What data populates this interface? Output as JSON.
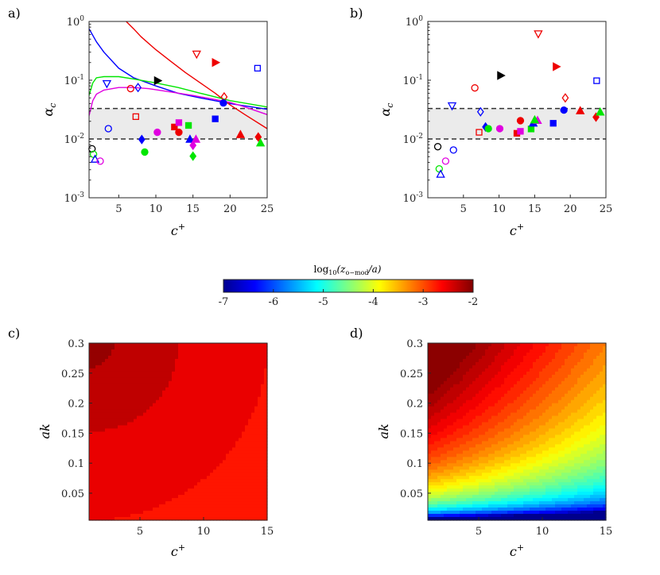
{
  "figure": {
    "panels": [
      {
        "label": "a)",
        "id": "a"
      },
      {
        "label": "b)",
        "id": "b"
      },
      {
        "label": "c)",
        "id": "c"
      },
      {
        "label": "d)",
        "id": "d"
      }
    ]
  },
  "colors": {
    "black": "#000000",
    "blue": "#0000ff",
    "green": "#00e600",
    "magenta": "#e000e0",
    "red": "#ee0000",
    "band": "#ebebeb"
  },
  "chart_data": [
    {
      "id": "a",
      "type": "scatter",
      "title": "",
      "xlabel": "c+",
      "ylabel": "αc",
      "xscale": "linear",
      "yscale": "log",
      "xlim": [
        1,
        25
      ],
      "ylim": [
        0.001,
        1
      ],
      "xticks": [
        "5",
        "10",
        "15",
        "20",
        "25"
      ],
      "yticks": [
        "10-3",
        "10-2",
        "10-1",
        "100"
      ],
      "reference_lines": [
        0.01,
        0.033
      ],
      "band": [
        0.01,
        0.033
      ],
      "curves": [
        {
          "color": "blue",
          "x": [
            1,
            2,
            3,
            5,
            7,
            10,
            13,
            16,
            20,
            25
          ],
          "y": [
            0.75,
            0.45,
            0.3,
            0.16,
            0.11,
            0.08,
            0.06,
            0.05,
            0.04,
            0.032
          ]
        },
        {
          "color": "red",
          "x": [
            6,
            7,
            8,
            10,
            12,
            14,
            16,
            18,
            20,
            22,
            25
          ],
          "y": [
            1.0,
            0.75,
            0.55,
            0.33,
            0.21,
            0.135,
            0.09,
            0.06,
            0.038,
            0.026,
            0.015
          ]
        },
        {
          "color": "green",
          "x": [
            1,
            1.5,
            2,
            3,
            5,
            7,
            10,
            13,
            16,
            20,
            25
          ],
          "y": [
            0.055,
            0.09,
            0.11,
            0.115,
            0.115,
            0.105,
            0.09,
            0.075,
            0.06,
            0.045,
            0.035
          ]
        },
        {
          "color": "magenta",
          "x": [
            1,
            1.5,
            2,
            3,
            5,
            7,
            9,
            12,
            15,
            18,
            20,
            22,
            25
          ],
          "y": [
            0.025,
            0.045,
            0.058,
            0.068,
            0.075,
            0.075,
            0.072,
            0.063,
            0.055,
            0.047,
            0.042,
            0.035,
            0.026
          ]
        }
      ],
      "points": [
        {
          "x": 1.4,
          "y": 0.0068,
          "color": "black",
          "marker": "circle",
          "filled": false
        },
        {
          "x": 1.6,
          "y": 0.0055,
          "color": "green",
          "marker": "circle",
          "filled": false
        },
        {
          "x": 1.8,
          "y": 0.0045,
          "color": "blue",
          "marker": "triangle-up",
          "filled": false
        },
        {
          "x": 2.5,
          "y": 0.0042,
          "color": "magenta",
          "marker": "circle",
          "filled": false
        },
        {
          "x": 3.6,
          "y": 0.015,
          "color": "blue",
          "marker": "circle",
          "filled": false
        },
        {
          "x": 3.4,
          "y": 0.088,
          "color": "blue",
          "marker": "triangle-down",
          "filled": false
        },
        {
          "x": 6.6,
          "y": 0.072,
          "color": "red",
          "marker": "circle",
          "filled": false
        },
        {
          "x": 7.6,
          "y": 0.075,
          "color": "blue",
          "marker": "diamond",
          "filled": false
        },
        {
          "x": 7.3,
          "y": 0.024,
          "color": "red",
          "marker": "square",
          "filled": false
        },
        {
          "x": 8.1,
          "y": 0.0098,
          "color": "blue",
          "marker": "diamond",
          "filled": true
        },
        {
          "x": 8.5,
          "y": 0.006,
          "color": "green",
          "marker": "circle",
          "filled": true
        },
        {
          "x": 10.2,
          "y": 0.098,
          "color": "black",
          "marker": "triangle-right",
          "filled": true
        },
        {
          "x": 10.2,
          "y": 0.013,
          "color": "magenta",
          "marker": "circle",
          "filled": true
        },
        {
          "x": 12.5,
          "y": 0.016,
          "color": "red",
          "marker": "square",
          "filled": true
        },
        {
          "x": 13.1,
          "y": 0.019,
          "color": "magenta",
          "marker": "square",
          "filled": true
        },
        {
          "x": 13.1,
          "y": 0.013,
          "color": "red",
          "marker": "circle",
          "filled": true
        },
        {
          "x": 14.4,
          "y": 0.017,
          "color": "green",
          "marker": "square",
          "filled": true
        },
        {
          "x": 14.6,
          "y": 0.0098,
          "color": "blue",
          "marker": "triangle-up",
          "filled": true
        },
        {
          "x": 15.0,
          "y": 0.0078,
          "color": "magenta",
          "marker": "diamond",
          "filled": true
        },
        {
          "x": 15.4,
          "y": 0.0098,
          "color": "magenta",
          "marker": "triangle-up",
          "filled": true
        },
        {
          "x": 15.0,
          "y": 0.0051,
          "color": "green",
          "marker": "diamond",
          "filled": true
        },
        {
          "x": 15.5,
          "y": 0.28,
          "color": "red",
          "marker": "triangle-down",
          "filled": false
        },
        {
          "x": 18.0,
          "y": 0.2,
          "color": "red",
          "marker": "triangle-right",
          "filled": true
        },
        {
          "x": 18.0,
          "y": 0.022,
          "color": "blue",
          "marker": "square",
          "filled": true
        },
        {
          "x": 19.2,
          "y": 0.052,
          "color": "red",
          "marker": "diamond",
          "filled": false
        },
        {
          "x": 19.1,
          "y": 0.041,
          "color": "blue",
          "marker": "circle",
          "filled": true
        },
        {
          "x": 21.4,
          "y": 0.0118,
          "color": "red",
          "marker": "triangle-up",
          "filled": true
        },
        {
          "x": 23.7,
          "y": 0.16,
          "color": "blue",
          "marker": "square",
          "filled": false
        },
        {
          "x": 23.8,
          "y": 0.0108,
          "color": "red",
          "marker": "diamond",
          "filled": true
        },
        {
          "x": 24.1,
          "y": 0.0085,
          "color": "green",
          "marker": "triangle-up",
          "filled": true
        }
      ]
    },
    {
      "id": "b",
      "type": "scatter",
      "title": "",
      "xlabel": "c+",
      "ylabel": "αc",
      "xscale": "linear",
      "yscale": "log",
      "xlim": [
        0,
        25
      ],
      "ylim": [
        0.001,
        1
      ],
      "xticks": [
        "5",
        "10",
        "15",
        "20",
        "25"
      ],
      "yticks": [
        "10-3",
        "10-2",
        "10-1",
        "100"
      ],
      "reference_lines": [
        0.01,
        0.033
      ],
      "band": [
        0.01,
        0.033
      ],
      "points": [
        {
          "x": 1.4,
          "y": 0.0074,
          "color": "black",
          "marker": "circle",
          "filled": false
        },
        {
          "x": 1.6,
          "y": 0.0031,
          "color": "green",
          "marker": "circle",
          "filled": false
        },
        {
          "x": 1.8,
          "y": 0.0025,
          "color": "blue",
          "marker": "triangle-up",
          "filled": false
        },
        {
          "x": 2.5,
          "y": 0.0042,
          "color": "magenta",
          "marker": "circle",
          "filled": false
        },
        {
          "x": 3.6,
          "y": 0.0065,
          "color": "blue",
          "marker": "circle",
          "filled": false
        },
        {
          "x": 3.4,
          "y": 0.037,
          "color": "blue",
          "marker": "triangle-down",
          "filled": false
        },
        {
          "x": 6.6,
          "y": 0.074,
          "color": "red",
          "marker": "circle",
          "filled": false
        },
        {
          "x": 7.4,
          "y": 0.029,
          "color": "blue",
          "marker": "diamond",
          "filled": false
        },
        {
          "x": 7.2,
          "y": 0.013,
          "color": "red",
          "marker": "square",
          "filled": false
        },
        {
          "x": 8.1,
          "y": 0.016,
          "color": "blue",
          "marker": "diamond",
          "filled": true
        },
        {
          "x": 8.5,
          "y": 0.015,
          "color": "green",
          "marker": "circle",
          "filled": true
        },
        {
          "x": 10.2,
          "y": 0.12,
          "color": "black",
          "marker": "triangle-right",
          "filled": true
        },
        {
          "x": 10.1,
          "y": 0.015,
          "color": "magenta",
          "marker": "circle",
          "filled": true
        },
        {
          "x": 12.5,
          "y": 0.0125,
          "color": "red",
          "marker": "square",
          "filled": true
        },
        {
          "x": 13.0,
          "y": 0.0135,
          "color": "magenta",
          "marker": "square",
          "filled": true
        },
        {
          "x": 13.0,
          "y": 0.0205,
          "color": "red",
          "marker": "circle",
          "filled": true
        },
        {
          "x": 14.5,
          "y": 0.0148,
          "color": "green",
          "marker": "square",
          "filled": true
        },
        {
          "x": 14.8,
          "y": 0.0185,
          "color": "blue",
          "marker": "triangle-up",
          "filled": true
        },
        {
          "x": 15.4,
          "y": 0.0205,
          "color": "magenta",
          "marker": "triangle-up",
          "filled": true
        },
        {
          "x": 15.0,
          "y": 0.021,
          "color": "green",
          "marker": "triangle-up",
          "filled": true
        },
        {
          "x": 15.5,
          "y": 0.62,
          "color": "red",
          "marker": "triangle-down",
          "filled": false
        },
        {
          "x": 18.0,
          "y": 0.17,
          "color": "red",
          "marker": "triangle-right",
          "filled": true
        },
        {
          "x": 17.6,
          "y": 0.0185,
          "color": "blue",
          "marker": "square",
          "filled": true
        },
        {
          "x": 19.3,
          "y": 0.05,
          "color": "red",
          "marker": "diamond",
          "filled": false
        },
        {
          "x": 19.1,
          "y": 0.031,
          "color": "blue",
          "marker": "circle",
          "filled": true
        },
        {
          "x": 21.4,
          "y": 0.03,
          "color": "red",
          "marker": "triangle-up",
          "filled": true
        },
        {
          "x": 23.7,
          "y": 0.098,
          "color": "blue",
          "marker": "square",
          "filled": false
        },
        {
          "x": 23.6,
          "y": 0.0235,
          "color": "red",
          "marker": "diamond",
          "filled": true
        },
        {
          "x": 24.2,
          "y": 0.0285,
          "color": "green",
          "marker": "triangle-up",
          "filled": true
        }
      ]
    },
    {
      "id": "colorbar",
      "type": "colorbar",
      "title": "log10(zo−mod/a)",
      "title_parts": {
        "prefix": "log",
        "sub": "10",
        "arg": "(z",
        "argsub": "o−mod",
        "suffix": "/a)"
      },
      "range": [
        -7,
        -2
      ],
      "ticks": [
        "-7",
        "-6",
        "-5",
        "-4",
        "-3",
        "-2"
      ],
      "colormap": "jet"
    },
    {
      "id": "c",
      "type": "heatmap",
      "xlabel": "c+",
      "ylabel": "ak",
      "xlim": [
        1,
        15
      ],
      "ylim": [
        0.005,
        0.3
      ],
      "xticks": [
        "5",
        "10",
        "15"
      ],
      "yticks": [
        "0.05",
        "0.1",
        "0.15",
        "0.2",
        "0.25",
        "0.3"
      ],
      "value_range": [
        -2.75,
        -2.05
      ],
      "levels": 24,
      "description_of_field": "max near c+≈1–3, ak≈0.2–0.3"
    },
    {
      "id": "d",
      "type": "heatmap",
      "xlabel": "c+",
      "ylabel": "ak",
      "xlim": [
        1,
        15
      ],
      "ylim": [
        0.005,
        0.3
      ],
      "xticks": [
        "5",
        "10",
        "15"
      ],
      "yticks": [
        "0.05",
        "0.1",
        "0.15",
        "0.2",
        "0.25",
        "0.3"
      ],
      "value_range": [
        -7,
        -2
      ],
      "levels": 40
    }
  ]
}
